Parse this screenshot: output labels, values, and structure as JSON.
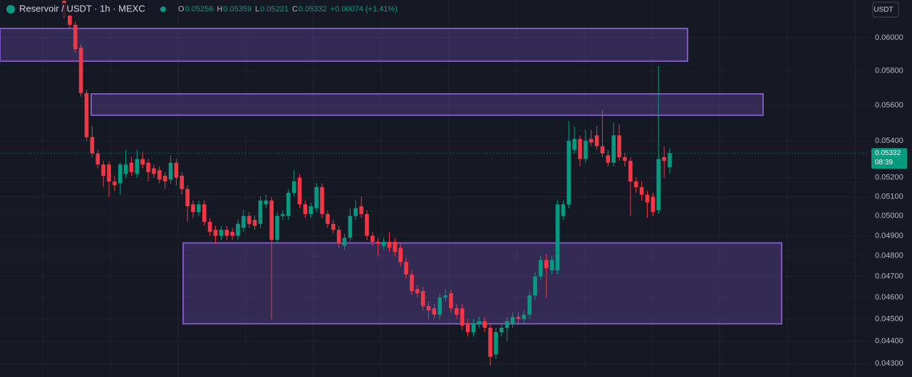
{
  "chart_data": {
    "type": "candlestick",
    "title": "Reservoir / USDT · 1h · MEXC",
    "ohlc_labels": [
      "O",
      "H",
      "L",
      "C"
    ],
    "change": "+0.00074 (+1.41%)",
    "currency_button": "USDT",
    "countdown": "08:39",
    "log_scale": true,
    "ylim": [
      0.04241,
      0.06236
    ],
    "yticks": [
      {
        "value": 0.06,
        "label": "0.06000"
      },
      {
        "value": 0.058,
        "label": "0.05800"
      },
      {
        "value": 0.056,
        "label": "0.05600"
      },
      {
        "value": 0.054,
        "label": "0.05400"
      },
      {
        "value": 0.052,
        "label": "0.05200"
      },
      {
        "value": 0.051,
        "label": "0.05100"
      },
      {
        "value": 0.05,
        "label": "0.05000"
      },
      {
        "value": 0.049,
        "label": "0.04900"
      },
      {
        "value": 0.048,
        "label": "0.04800"
      },
      {
        "value": 0.047,
        "label": "0.04700"
      },
      {
        "value": 0.046,
        "label": "0.04600"
      },
      {
        "value": 0.045,
        "label": "0.04500"
      },
      {
        "value": 0.044,
        "label": "0.04400"
      },
      {
        "value": 0.043,
        "label": "0.04300"
      }
    ],
    "grid": true,
    "up_color": "#089981",
    "down_color": "#f23645",
    "zone_color": "#7e57c2",
    "zones": [
      {
        "top": 0.06057,
        "bottom": 0.05858
      },
      {
        "top": 0.05665,
        "bottom": 0.05543
      },
      {
        "top": 0.04864,
        "bottom": 0.04478
      }
    ],
    "series": [
      {
        "open": [
          0.0623,
          0.0614,
          0.0608,
          0.0594,
          0.0567,
          0.0542,
          0.0533,
          0.0527,
          0.0527,
          0.0518,
          0.0517,
          0.0522,
          0.0528,
          0.0522,
          0.053,
          0.0528,
          0.0525,
          0.0524,
          0.0521,
          0.0519,
          0.0528,
          0.0521,
          0.0514,
          0.0506,
          0.0502,
          0.0506,
          0.0497,
          0.0493,
          0.049,
          0.0493,
          0.0492,
          0.049,
          0.0494,
          0.05,
          0.0498,
          0.0496,
          0.0506,
          0.0508,
          0.0488,
          0.05,
          0.05,
          0.0512,
          0.052,
          0.0506,
          0.0501,
          0.0504,
          0.0515,
          0.0501,
          0.0496,
          0.0493,
          0.0485,
          0.0489,
          0.05,
          0.0505,
          0.0501,
          0.049,
          0.0487,
          0.0485,
          0.0487,
          0.0487,
          0.0484,
          0.0477,
          0.0471,
          0.0464,
          0.0463,
          0.0456,
          0.0455,
          0.0452,
          0.046,
          0.0462,
          0.0455,
          0.0455,
          0.0448,
          0.0444,
          0.0448,
          0.0449,
          0.0446,
          0.0434,
          0.0444,
          0.0446,
          0.0448,
          0.0451,
          0.045,
          0.0452,
          0.0461,
          0.047,
          0.0478,
          0.0473,
          0.0473,
          0.05,
          0.0506,
          0.0535,
          0.0541,
          0.053,
          0.0541,
          0.0543,
          0.0537,
          0.0532,
          0.0528,
          0.0543,
          0.0531,
          0.0529,
          0.0518,
          0.0515,
          0.0511,
          0.051,
          0.0503,
          0.0531,
          0.05256
        ],
        "high": [
          0.0625,
          0.0616,
          0.061,
          0.0596,
          0.0569,
          0.0548,
          0.0535,
          0.0529,
          0.0529,
          0.0521,
          0.0528,
          0.0535,
          0.0531,
          0.0535,
          0.0534,
          0.053,
          0.0527,
          0.0526,
          0.0523,
          0.0532,
          0.053,
          0.0523,
          0.0516,
          0.0508,
          0.0508,
          0.0508,
          0.0499,
          0.0495,
          0.0495,
          0.0495,
          0.0494,
          0.0498,
          0.0503,
          0.0502,
          0.05,
          0.051,
          0.0511,
          0.051,
          0.0502,
          0.0503,
          0.0514,
          0.0524,
          0.0522,
          0.0508,
          0.0507,
          0.0517,
          0.0517,
          0.0503,
          0.0498,
          0.0495,
          0.0491,
          0.0504,
          0.0508,
          0.051,
          0.0503,
          0.0492,
          0.0489,
          0.0489,
          0.0492,
          0.0489,
          0.0486,
          0.0479,
          0.0473,
          0.0466,
          0.0465,
          0.0458,
          0.0457,
          0.0462,
          0.0464,
          0.0464,
          0.0457,
          0.0457,
          0.045,
          0.045,
          0.0451,
          0.0451,
          0.0448,
          0.0446,
          0.0448,
          0.0451,
          0.0453,
          0.0453,
          0.0454,
          0.0463,
          0.0472,
          0.048,
          0.0481,
          0.048,
          0.0508,
          0.0508,
          0.0551,
          0.0548,
          0.0543,
          0.0546,
          0.0546,
          0.0548,
          0.0557,
          0.0535,
          0.055,
          0.0549,
          0.0533,
          0.0531,
          0.052,
          0.0518,
          0.0513,
          0.0512,
          0.0583,
          0.0537,
          0.05359
        ],
        "low": [
          0.0612,
          0.0606,
          0.0591,
          0.0565,
          0.054,
          0.0531,
          0.0525,
          0.0515,
          0.051,
          0.0513,
          0.0511,
          0.052,
          0.0521,
          0.052,
          0.0525,
          0.0518,
          0.052,
          0.0517,
          0.0514,
          0.0517,
          0.0516,
          0.0511,
          0.0497,
          0.0499,
          0.05,
          0.0495,
          0.049,
          0.0486,
          0.0488,
          0.0488,
          0.0488,
          0.0488,
          0.0492,
          0.0494,
          0.0493,
          0.0494,
          0.0504,
          0.045,
          0.0486,
          0.0498,
          0.0498,
          0.051,
          0.0504,
          0.0499,
          0.0499,
          0.0502,
          0.0499,
          0.0494,
          0.0491,
          0.0484,
          0.0483,
          0.0487,
          0.0498,
          0.0499,
          0.0488,
          0.0485,
          0.048,
          0.0483,
          0.0482,
          0.048,
          0.0475,
          0.0469,
          0.0461,
          0.046,
          0.0454,
          0.045,
          0.045,
          0.045,
          0.0458,
          0.0453,
          0.045,
          0.0445,
          0.0442,
          0.0442,
          0.0446,
          0.0444,
          0.0429,
          0.0432,
          0.0442,
          0.044,
          0.0446,
          0.0448,
          0.0448,
          0.045,
          0.0459,
          0.0468,
          0.046,
          0.0471,
          0.0471,
          0.0498,
          0.0504,
          0.0533,
          0.0526,
          0.0528,
          0.0537,
          0.0535,
          0.0531,
          0.0526,
          0.0526,
          0.0529,
          0.0526,
          0.05,
          0.0512,
          0.0508,
          0.0499,
          0.05,
          0.0501,
          0.052,
          0.05221
        ],
        "close": [
          0.0614,
          0.0608,
          0.0593,
          0.0567,
          0.0542,
          0.0533,
          0.0527,
          0.0521,
          0.0518,
          0.0516,
          0.0527,
          0.0527,
          0.0523,
          0.053,
          0.0527,
          0.0523,
          0.0522,
          0.0519,
          0.0518,
          0.0528,
          0.052,
          0.0514,
          0.0505,
          0.0502,
          0.0506,
          0.0497,
          0.0492,
          0.049,
          0.0493,
          0.049,
          0.049,
          0.0496,
          0.05,
          0.0496,
          0.0495,
          0.0508,
          0.0508,
          0.0488,
          0.05,
          0.0501,
          0.0512,
          0.0518,
          0.0506,
          0.0501,
          0.0505,
          0.0515,
          0.0501,
          0.0496,
          0.0493,
          0.0486,
          0.0489,
          0.05,
          0.0504,
          0.0501,
          0.049,
          0.0487,
          0.0486,
          0.0487,
          0.0484,
          0.0482,
          0.0477,
          0.0471,
          0.0463,
          0.0462,
          0.0456,
          0.0454,
          0.0452,
          0.046,
          0.0461,
          0.0455,
          0.0452,
          0.0447,
          0.0444,
          0.0448,
          0.0449,
          0.0446,
          0.0433,
          0.0444,
          0.0446,
          0.0449,
          0.0451,
          0.045,
          0.0452,
          0.0461,
          0.047,
          0.0478,
          0.0474,
          0.0478,
          0.0506,
          0.0506,
          0.054,
          0.0541,
          0.053,
          0.054,
          0.0539,
          0.0537,
          0.0533,
          0.0528,
          0.0543,
          0.0531,
          0.0529,
          0.0518,
          0.0515,
          0.0511,
          0.0507,
          0.0502,
          0.053,
          0.0529,
          0.05332
        ]
      }
    ]
  }
}
